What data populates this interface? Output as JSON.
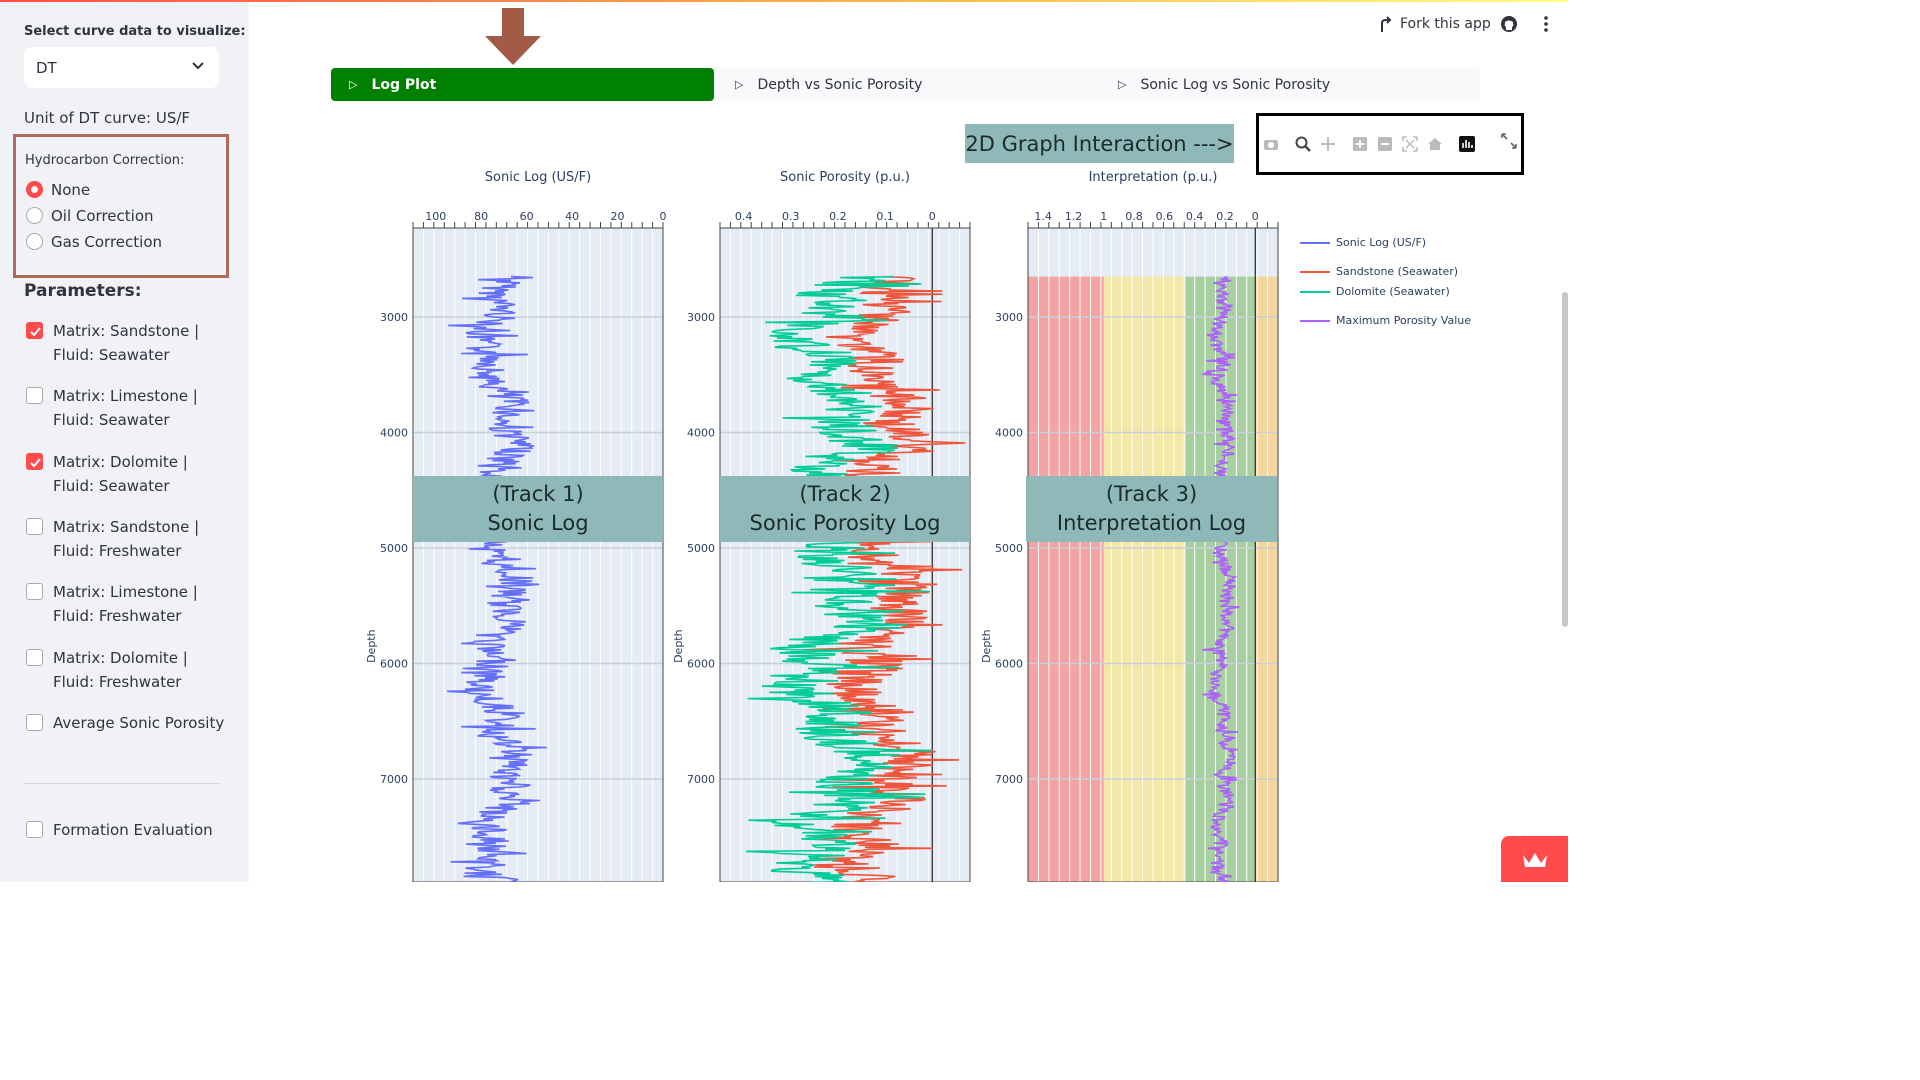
{
  "sidebar": {
    "select_label": "Select curve data to visualize:",
    "select_value": "DT",
    "unit_line": "Unit of DT curve: US/F",
    "hc_title": "Hydrocarbon Correction:",
    "radios": [
      {
        "label": "None",
        "checked": true
      },
      {
        "label": "Oil Correction",
        "checked": false
      },
      {
        "label": "Gas Correction",
        "checked": false
      }
    ],
    "params_title": "Parameters:",
    "checkboxes": [
      {
        "label": "Matrix: Sandstone | Fluid: Seawater",
        "checked": true
      },
      {
        "label": "Matrix: Limestone | Fluid: Seawater",
        "checked": false
      },
      {
        "label": "Matrix: Dolomite | Fluid: Seawater",
        "checked": true
      },
      {
        "label": "Matrix: Sandstone | Fluid: Freshwater",
        "checked": false
      },
      {
        "label": "Matrix: Limestone | Fluid: Freshwater",
        "checked": false
      },
      {
        "label": "Matrix: Dolomite | Fluid: Freshwater",
        "checked": false
      },
      {
        "label": "Average Sonic Porosity",
        "checked": false
      }
    ],
    "formation_eval": "Formation Evaluation"
  },
  "header": {
    "fork_label": "Fork this app"
  },
  "tabs": [
    "Log Plot",
    "Depth vs Sonic Porosity",
    "Sonic Log vs Sonic Porosity"
  ],
  "annotations": {
    "interaction": "2D Graph Interaction --->",
    "track1": [
      "(Track 1)",
      "Sonic Log"
    ],
    "track2": [
      "(Track 2)",
      "Sonic  Porosity Log"
    ],
    "track3": [
      "(Track 3)",
      "Interpretation Log"
    ]
  },
  "colors": {
    "accent": "#ff4b4b",
    "tab_active": "#008000",
    "sonic": "#636efa",
    "sandstone": "#ef553b",
    "dolomite": "#00cc96",
    "max_porosity": "#ab63fa"
  },
  "chart_data": {
    "type": "line",
    "ylabel": "Depth",
    "ylim": [
      7900,
      2600
    ],
    "y_ticks": [
      3000,
      4000,
      5000,
      6000,
      7000
    ],
    "tracks": [
      {
        "title": "Sonic Log (US/F)",
        "xlim": [
          110,
          0
        ],
        "x_ticks": [
          100,
          80,
          60,
          40,
          20,
          0
        ],
        "series": [
          {
            "name": "Sonic Log (US/F)",
            "approx_range": [
              50,
              95
            ]
          }
        ]
      },
      {
        "title": "Sonic Porosity (p.u.)",
        "xlim": [
          0.45,
          -0.08
        ],
        "x_ticks": [
          0.4,
          0.3,
          0.2,
          0.1,
          0
        ],
        "series": [
          {
            "name": "Sandstone (Seawater)",
            "approx_range": [
              -0.07,
              0.28
            ]
          },
          {
            "name": "Dolomite (Seawater)",
            "approx_range": [
              0.0,
              0.42
            ]
          }
        ]
      },
      {
        "title": "Interpretation (p.u.)",
        "xlim": [
          1.5,
          -0.15
        ],
        "x_ticks": [
          "1.4",
          "1.2",
          "1",
          "0.8",
          "0.6",
          "0.4",
          "0.2",
          "0"
        ],
        "series": [
          {
            "name": "Maximum Porosity Value",
            "approx_range": [
              0.08,
              0.35
            ]
          }
        ],
        "zones": [
          {
            "from": 1.5,
            "to": 1.0,
            "color": "#f4a3a3"
          },
          {
            "from": 1.0,
            "to": 0.46,
            "color": "#f3e8a8"
          },
          {
            "from": 0.46,
            "to": 0.0,
            "color": "#a8cfa0"
          },
          {
            "from": 0.0,
            "to": -0.15,
            "color": "#f5d5a0"
          }
        ]
      }
    ],
    "legend": [
      "Sonic Log (US/F)",
      "Sandstone (Seawater)",
      "Dolomite (Seawater)",
      "Maximum Porosity Value"
    ]
  }
}
